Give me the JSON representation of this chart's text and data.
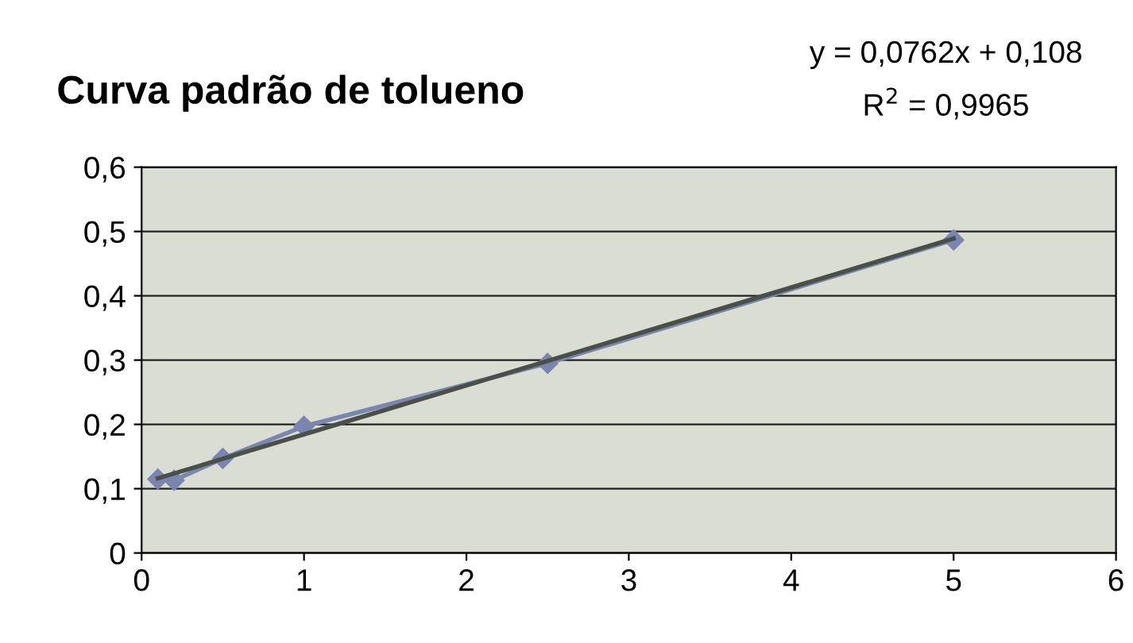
{
  "chart_data": {
    "type": "line",
    "title": "Curva padrão de tolueno",
    "annotations": [
      "y = 0,0762x + 0,108",
      "R$^{2}$ = 0,9965"
    ],
    "series": [
      {
        "color": "#7a86b0",
        "x": [
          0.1,
          0.2,
          0.5,
          1,
          2.5,
          5
        ],
        "values": [
          0.115,
          0.113,
          0.147,
          0.197,
          0.295,
          0.487
        ],
        "marker": "diamond"
      },
      {
        "type": "line",
        "color": "#4a5048",
        "x": [
          0.1,
          5
        ],
        "values": [
          0.116,
          0.489
        ],
        "marker": "none"
      }
    ],
    "xlim": [
      0,
      6
    ],
    "xticks": [
      0,
      1,
      2,
      3,
      4,
      5,
      6
    ],
    "ylim": [
      0,
      0.6
    ],
    "yticks": [
      {
        "value": 0,
        "label": "0"
      },
      {
        "value": 0.1,
        "label": "0,1"
      },
      {
        "value": 0.2,
        "label": "0,2"
      },
      {
        "value": 0.3,
        "label": "0,3"
      },
      {
        "value": 0.4,
        "label": "0,4"
      },
      {
        "value": 0.5,
        "label": "0,5"
      },
      {
        "value": 0.6,
        "label": "0,6"
      }
    ],
    "grid": "y",
    "legend": false
  }
}
